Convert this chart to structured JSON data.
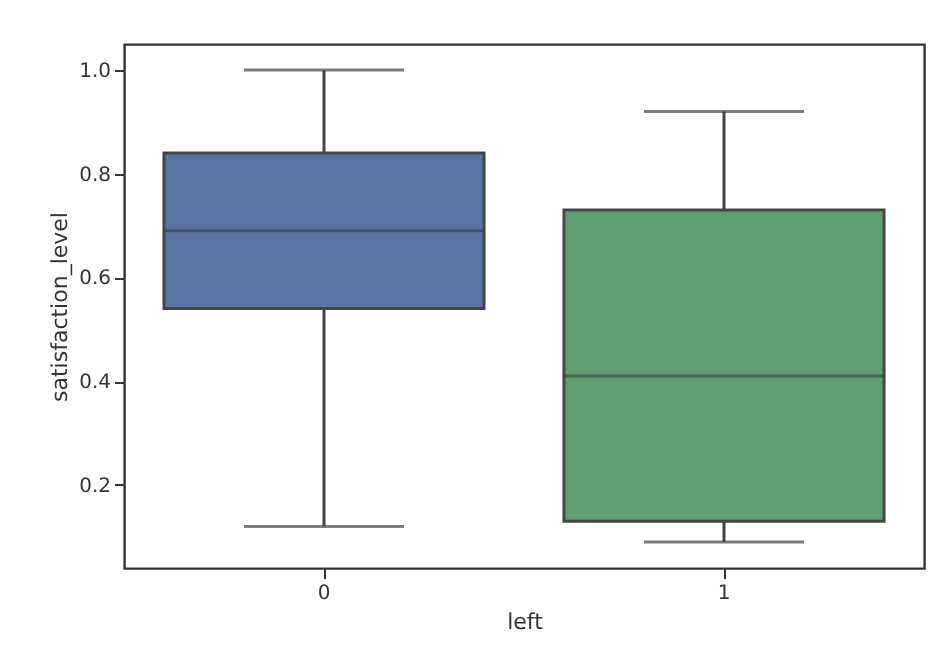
{
  "chart_data": {
    "type": "box",
    "xlabel": "left",
    "ylabel": "satisfaction_level",
    "categories": [
      "0",
      "1"
    ],
    "colors": [
      "#5975a4",
      "#5f9e6e"
    ],
    "boxes": [
      {
        "low": 0.12,
        "q1": 0.54,
        "median": 0.69,
        "q3": 0.84,
        "high": 1.0
      },
      {
        "low": 0.09,
        "q1": 0.13,
        "median": 0.41,
        "q3": 0.73,
        "high": 0.92
      }
    ],
    "ylim": [
      0.04,
      1.05
    ],
    "yticks": [
      0.2,
      0.4,
      0.6,
      0.8,
      {
        "value": 1.0,
        "label": "1.0"
      }
    ],
    "grid": false
  }
}
